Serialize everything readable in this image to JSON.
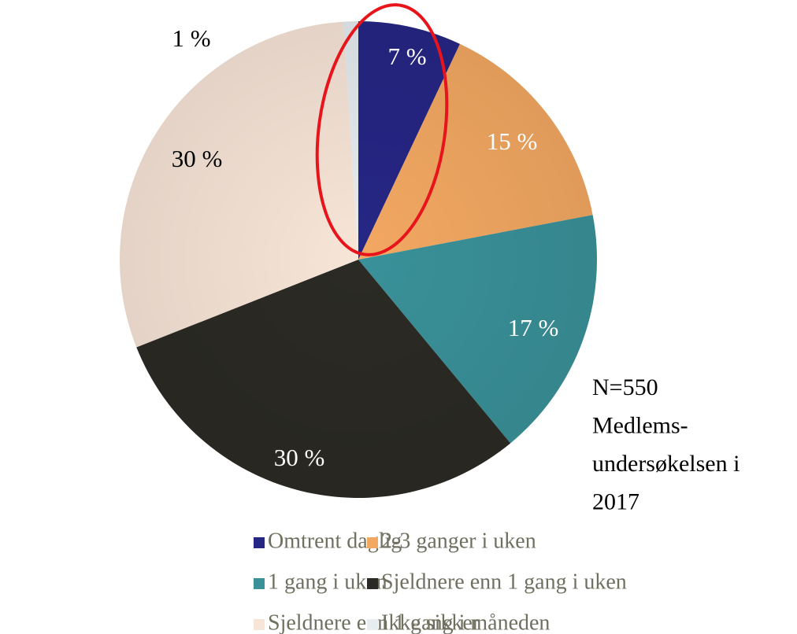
{
  "chart_data": {
    "type": "pie",
    "categories": [
      "Omtrent daglig",
      "2-3 ganger i uken",
      "1 gang i uken",
      "Sjeldnere enn 1 gang i uken",
      "Sjeldnere enn 1 gang i måneden",
      "Ikke sikker"
    ],
    "values": [
      7,
      15,
      17,
      30,
      30,
      1
    ],
    "value_labels": [
      "7 %",
      "15 %",
      "17 %",
      "30 %",
      "30 %",
      "1 %"
    ],
    "colors": [
      "#262685",
      "#f3a862",
      "#3a9199",
      "#2b2a24",
      "#f7e5d7",
      "#e6ecf0"
    ],
    "annotation": [
      "N=550",
      "Medlems-",
      "undersøkelsen i",
      "2017"
    ]
  }
}
